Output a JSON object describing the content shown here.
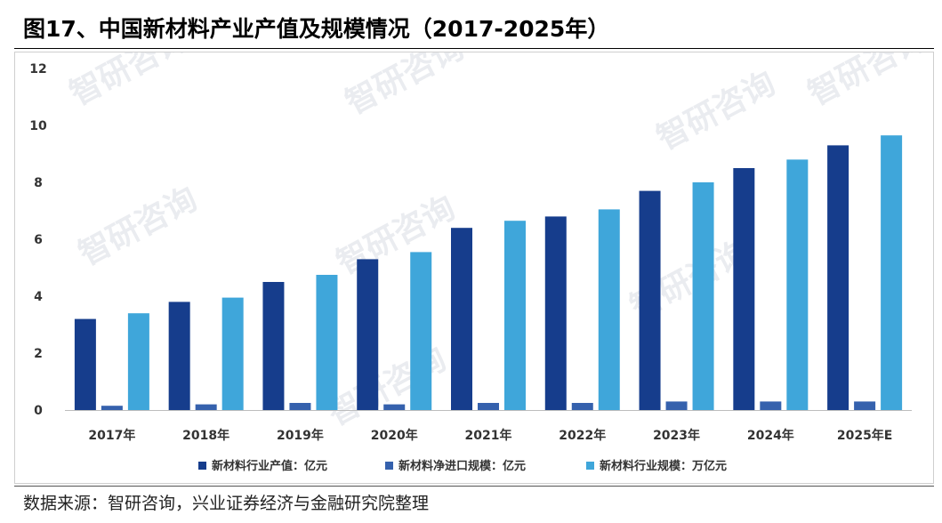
{
  "title": "图17、中国新材料产业产值及规模情况（2017-2025年）",
  "source": "数据来源：智研咨询，兴业证券经济与金融研究院整理",
  "watermark": "智研咨询",
  "colors": {
    "series_1": "#163d8c",
    "series_2": "#3561ad",
    "series_3": "#3fa6da",
    "axis_text": "#333333",
    "axis_line": "#bdbdbd"
  },
  "chart_data": {
    "type": "bar",
    "categories": [
      "2017年",
      "2018年",
      "2019年",
      "2020年",
      "2021年",
      "2022年",
      "2023年",
      "2024年",
      "2025年E"
    ],
    "series": [
      {
        "name": "新材料行业产值：亿元",
        "values": [
          3.2,
          3.8,
          4.5,
          5.3,
          6.4,
          6.8,
          7.7,
          8.5,
          9.3
        ]
      },
      {
        "name": "新材料净进口规模：亿元",
        "values": [
          0.15,
          0.2,
          0.25,
          0.2,
          0.25,
          0.25,
          0.3,
          0.3,
          0.3
        ]
      },
      {
        "name": "新材料行业规模：万亿元",
        "values": [
          3.4,
          3.95,
          4.75,
          5.55,
          6.65,
          7.05,
          8.0,
          8.8,
          9.65
        ]
      }
    ],
    "xlabel": "",
    "ylabel": "",
    "ylim": [
      0,
      12
    ],
    "yticks": [
      0,
      2,
      4,
      6,
      8,
      10,
      12
    ],
    "grid": false,
    "legend": "bottom-center"
  }
}
